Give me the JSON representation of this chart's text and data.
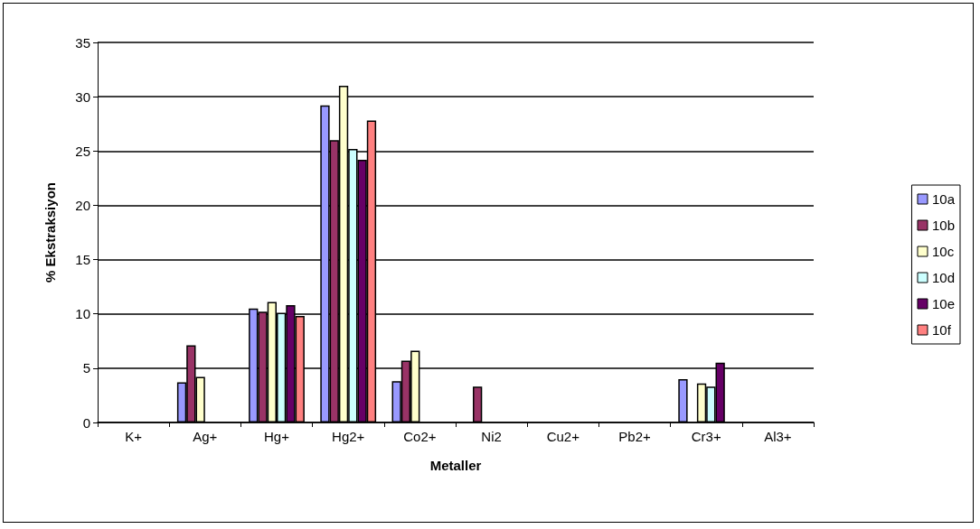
{
  "chart_data": {
    "type": "bar",
    "xlabel": "Metaller",
    "ylabel": "% Ekstraksiyon",
    "categories": [
      "K+",
      "Ag+",
      "Hg+",
      "Hg2+",
      "Co2+",
      "Ni2",
      "Cu2+",
      "Pb2+",
      "Cr3+",
      "Al3+"
    ],
    "series": [
      {
        "name": "10a",
        "color": "#9999ff",
        "values": [
          null,
          3.7,
          10.5,
          29.2,
          3.8,
          null,
          null,
          null,
          4.0,
          null
        ]
      },
      {
        "name": "10b",
        "color": "#993366",
        "values": [
          null,
          7.1,
          10.2,
          26.0,
          5.7,
          3.3,
          null,
          null,
          null,
          null
        ]
      },
      {
        "name": "10c",
        "color": "#ffffcc",
        "values": [
          null,
          4.2,
          11.1,
          31.0,
          6.6,
          null,
          null,
          null,
          3.6,
          null
        ]
      },
      {
        "name": "10d",
        "color": "#ccffff",
        "values": [
          null,
          null,
          10.1,
          25.2,
          null,
          null,
          null,
          null,
          3.3,
          null
        ]
      },
      {
        "name": "10e",
        "color": "#660066",
        "values": [
          null,
          null,
          10.8,
          24.2,
          null,
          null,
          null,
          null,
          5.5,
          null
        ]
      },
      {
        "name": "10f",
        "color": "#ff8080",
        "values": [
          null,
          null,
          9.8,
          27.8,
          null,
          null,
          null,
          null,
          null,
          null
        ]
      }
    ],
    "ylim": [
      0,
      35
    ],
    "yticks": [
      0,
      5,
      10,
      15,
      20,
      25,
      30,
      35
    ],
    "grid": "y",
    "legend": "right"
  }
}
